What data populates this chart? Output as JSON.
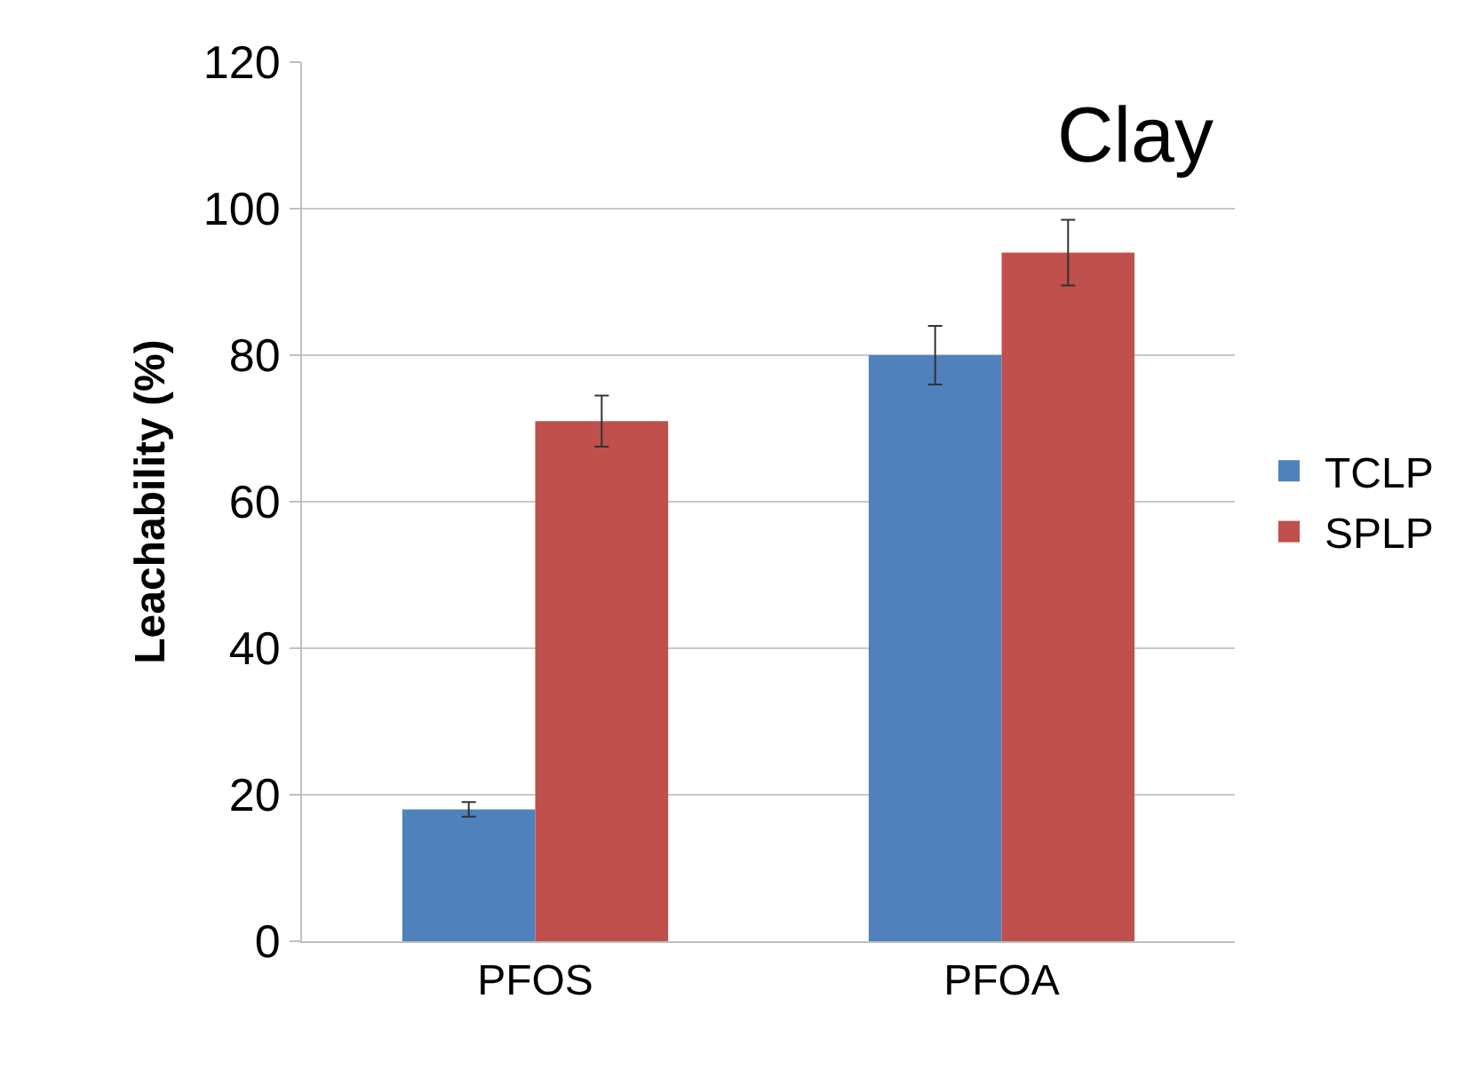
{
  "chart_data": {
    "type": "bar",
    "ylabel": "Leachability (%)",
    "categories": [
      "PFOS",
      "PFOA"
    ],
    "series": [
      {
        "name": "TCLP",
        "color": "#4f81bd",
        "values": [
          18,
          80
        ],
        "errors": [
          1,
          4
        ]
      },
      {
        "name": "SPLP",
        "color": "#c0504d",
        "values": [
          71,
          94
        ],
        "errors": [
          3.5,
          4.5
        ]
      }
    ],
    "annotations": [
      "Clay"
    ],
    "ylim": [
      0,
      120
    ],
    "yticks": [
      0,
      20,
      40,
      60,
      80,
      100,
      120
    ],
    "grid": "y",
    "legend": "right"
  }
}
